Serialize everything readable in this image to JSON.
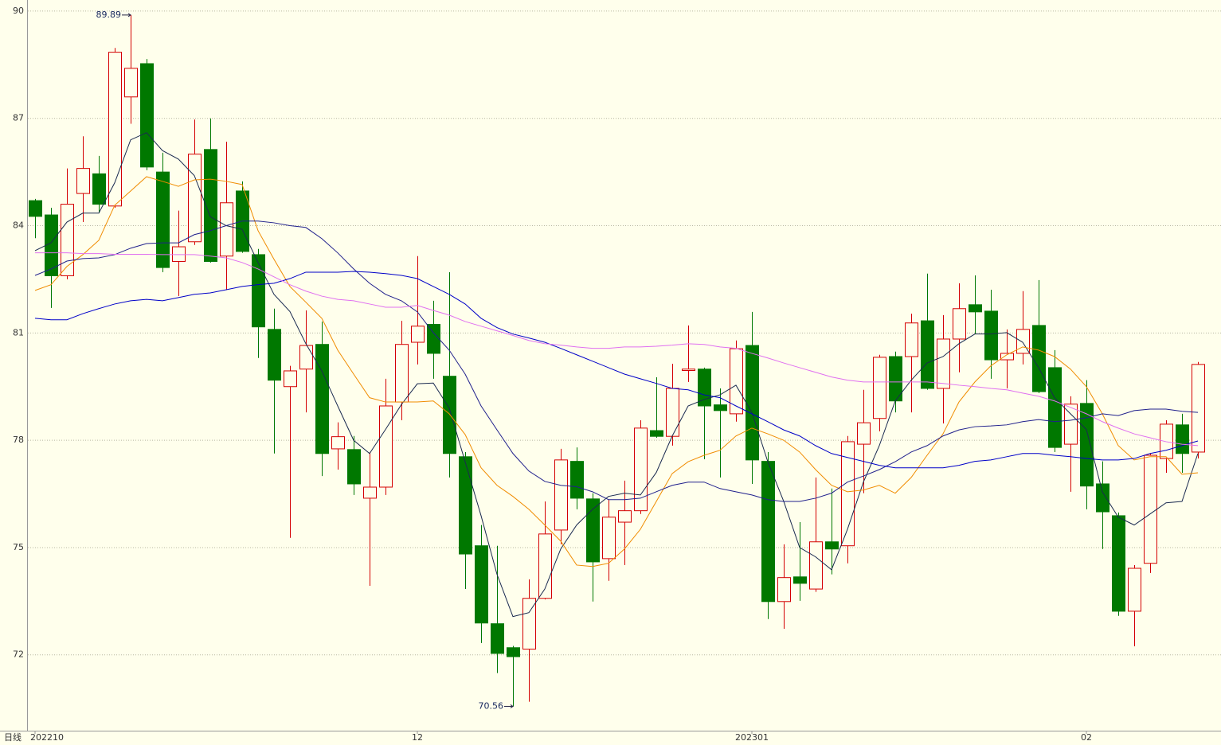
{
  "chart_data": {
    "type": "candlestick",
    "period_label": "日线",
    "categories": [
      "202210",
      null,
      null,
      null,
      null,
      null,
      null,
      null,
      null,
      null,
      null,
      null,
      null,
      null,
      null,
      null,
      null,
      null,
      null,
      null,
      null,
      null,
      null,
      null,
      "12",
      null,
      null,
      null,
      null,
      null,
      null,
      null,
      null,
      null,
      null,
      null,
      null,
      null,
      null,
      null,
      null,
      null,
      null,
      null,
      null,
      "202301",
      null,
      null,
      null,
      null,
      null,
      null,
      null,
      null,
      null,
      null,
      null,
      null,
      null,
      null,
      null,
      null,
      null,
      null,
      null,
      null,
      "02",
      null,
      null,
      null,
      null,
      null,
      null,
      null
    ],
    "open": [
      84.7,
      84.3,
      82.6,
      84.9,
      85.45,
      84.55,
      87.6,
      88.53,
      85.5,
      83.0,
      83.55,
      86.13,
      83.15,
      84.97,
      83.19,
      81.1,
      79.5,
      79.99,
      80.68,
      77.76,
      77.74,
      76.38,
      76.69,
      79.07,
      80.74,
      81.24,
      79.79,
      77.54,
      75.05,
      72.87,
      72.2,
      72.16,
      73.58,
      75.49,
      77.41,
      76.36,
      74.69,
      75.71,
      76.03,
      78.27,
      78.11,
      79.95,
      79.99,
      78.99,
      78.74,
      80.65,
      77.41,
      73.49,
      74.18,
      73.84,
      75.16,
      75.05,
      77.89,
      78.61,
      80.34,
      80.34,
      81.34,
      79.45,
      80.83,
      81.79,
      81.61,
      80.25,
      80.43,
      81.21,
      80.03,
      77.89,
      79.03,
      76.78,
      75.89,
      73.22,
      74.56,
      77.49,
      78.43,
      77.67
    ],
    "high": [
      84.75,
      84.5,
      85.6,
      86.5,
      85.95,
      88.97,
      89.89,
      88.66,
      86.04,
      84.42,
      86.97,
      87.0,
      86.35,
      85.24,
      83.35,
      81.68,
      80.08,
      81.63,
      81.32,
      78.5,
      78.12,
      77.67,
      79.72,
      81.34,
      83.15,
      81.9,
      82.7,
      77.67,
      75.63,
      75.05,
      72.25,
      74.11,
      76.29,
      77.76,
      77.8,
      76.52,
      76.34,
      76.87,
      78.56,
      79.76,
      80.14,
      81.21,
      80.03,
      79.45,
      80.79,
      81.59,
      77.67,
      75.09,
      75.71,
      76.96,
      76.65,
      78.12,
      79.41,
      80.39,
      80.48,
      81.54,
      82.66,
      81.5,
      82.39,
      82.61,
      82.21,
      81.1,
      82.17,
      82.48,
      80.52,
      79.23,
      79.68,
      77.41,
      75.98,
      74.51,
      77.63,
      78.56,
      78.74,
      80.19
    ],
    "low": [
      83.65,
      81.7,
      82.5,
      84.1,
      84.35,
      84.5,
      86.85,
      85.55,
      82.7,
      82.03,
      83.46,
      82.97,
      82.2,
      83.24,
      80.3,
      77.63,
      75.27,
      78.78,
      77.0,
      77.18,
      76.47,
      73.93,
      76.47,
      78.56,
      80.12,
      79.72,
      76.96,
      73.84,
      72.33,
      71.49,
      70.56,
      70.69,
      73.55,
      75.09,
      76.07,
      73.49,
      74.07,
      74.51,
      75.94,
      78.07,
      77.85,
      79.63,
      77.47,
      76.96,
      78.52,
      76.78,
      73.0,
      72.73,
      73.51,
      73.76,
      74.25,
      74.56,
      76.52,
      78.25,
      78.78,
      78.78,
      79.41,
      78.47,
      79.9,
      80.97,
      79.72,
      79.45,
      80.12,
      79.32,
      77.67,
      76.56,
      76.07,
      74.96,
      73.09,
      72.24,
      74.29,
      77.09,
      77.09,
      77.49
    ],
    "close": [
      84.26,
      82.6,
      84.6,
      85.6,
      84.6,
      88.85,
      88.4,
      85.64,
      82.83,
      83.41,
      86.0,
      83.0,
      84.64,
      83.28,
      81.17,
      79.68,
      79.94,
      80.65,
      77.63,
      78.1,
      76.78,
      76.69,
      78.96,
      80.68,
      81.19,
      80.43,
      77.63,
      74.82,
      72.89,
      72.04,
      71.95,
      73.58,
      75.38,
      77.45,
      76.38,
      74.6,
      75.85,
      76.03,
      78.34,
      78.11,
      79.45,
      79.99,
      78.96,
      78.83,
      80.56,
      77.45,
      73.49,
      74.16,
      74.0,
      75.16,
      74.96,
      77.96,
      78.49,
      80.32,
      79.1,
      81.28,
      79.45,
      80.83,
      81.68,
      81.59,
      80.25,
      80.43,
      81.1,
      79.36,
      77.8,
      79.01,
      76.72,
      76.0,
      73.22,
      74.42,
      77.58,
      78.45,
      77.63,
      80.12
    ],
    "up_color": "#d40000",
    "down_color": "#007800",
    "series": [
      {
        "color": "#1a2a50",
        "values": [
          83.3,
          83.52,
          84.1,
          84.35,
          84.35,
          85.2,
          86.4,
          86.6,
          86.1,
          85.86,
          85.4,
          84.25,
          84.0,
          83.9,
          82.97,
          82.08,
          81.6,
          80.7,
          79.94,
          78.96,
          78.0,
          77.63,
          78.3,
          79.0,
          79.58,
          79.6,
          78.9,
          77.4,
          75.89,
          74.25,
          73.07,
          73.18,
          73.84,
          74.96,
          75.63,
          76.07,
          76.43,
          76.52,
          76.47,
          77.1,
          78.12,
          78.96,
          79.14,
          79.27,
          79.54,
          78.78,
          77.4,
          76.29,
          75.0,
          74.74,
          74.38,
          75.51,
          76.83,
          77.85,
          79.1,
          79.68,
          80.16,
          80.34,
          80.7,
          80.97,
          80.97,
          81.01,
          80.74,
          80.03,
          79.19,
          78.74,
          78.3,
          76.56,
          75.85,
          75.63,
          75.94,
          76.25,
          76.29,
          77.63
        ]
      },
      {
        "color": "#f08c00",
        "values": [
          82.19,
          82.35,
          82.86,
          83.19,
          83.59,
          84.57,
          84.97,
          85.37,
          85.24,
          85.1,
          85.28,
          85.3,
          85.24,
          85.15,
          83.86,
          83.06,
          82.3,
          81.86,
          81.41,
          80.52,
          79.85,
          79.19,
          79.07,
          79.07,
          79.07,
          79.1,
          78.74,
          78.16,
          77.23,
          76.74,
          76.43,
          76.07,
          75.63,
          75.18,
          74.51,
          74.47,
          74.56,
          74.96,
          75.51,
          76.29,
          77.07,
          77.4,
          77.58,
          77.72,
          78.12,
          78.34,
          78.18,
          78.0,
          77.67,
          77.18,
          76.74,
          76.56,
          76.61,
          76.74,
          76.52,
          76.96,
          77.58,
          78.18,
          79.07,
          79.63,
          80.08,
          80.39,
          80.61,
          80.52,
          80.34,
          79.99,
          79.5,
          78.74,
          77.85,
          77.45,
          77.54,
          77.54,
          77.05,
          77.09
        ]
      },
      {
        "color": "#20208c",
        "values": [
          82.61,
          82.79,
          83.01,
          83.08,
          83.1,
          83.19,
          83.37,
          83.5,
          83.52,
          83.52,
          83.75,
          83.86,
          84.0,
          84.13,
          84.13,
          84.08,
          84.0,
          83.95,
          83.64,
          83.24,
          82.79,
          82.39,
          82.08,
          81.9,
          81.59,
          81.01,
          80.52,
          79.85,
          78.96,
          78.29,
          77.63,
          77.14,
          76.85,
          76.74,
          76.7,
          76.56,
          76.34,
          76.34,
          76.38,
          76.56,
          76.74,
          76.83,
          76.83,
          76.65,
          76.56,
          76.47,
          76.34,
          76.29,
          76.29,
          76.38,
          76.52,
          76.83,
          77.0,
          77.18,
          77.4,
          77.67,
          77.85,
          78.12,
          78.29,
          78.38,
          78.4,
          78.43,
          78.52,
          78.58,
          78.52,
          78.56,
          78.63,
          78.74,
          78.69,
          78.83,
          78.87,
          78.87,
          78.81,
          78.78
        ]
      },
      {
        "color": "#0000c8",
        "values": [
          81.41,
          81.37,
          81.37,
          81.54,
          81.68,
          81.81,
          81.9,
          81.94,
          81.9,
          81.99,
          82.08,
          82.12,
          82.21,
          82.3,
          82.35,
          82.39,
          82.52,
          82.7,
          82.7,
          82.7,
          82.72,
          82.7,
          82.66,
          82.61,
          82.52,
          82.3,
          82.08,
          81.81,
          81.41,
          81.15,
          80.97,
          80.86,
          80.74,
          80.57,
          80.39,
          80.21,
          80.03,
          79.85,
          79.72,
          79.59,
          79.45,
          79.41,
          79.27,
          79.19,
          78.96,
          78.74,
          78.52,
          78.29,
          78.12,
          77.85,
          77.63,
          77.52,
          77.41,
          77.3,
          77.23,
          77.23,
          77.23,
          77.23,
          77.3,
          77.41,
          77.45,
          77.54,
          77.63,
          77.63,
          77.58,
          77.54,
          77.49,
          77.45,
          77.45,
          77.49,
          77.63,
          77.72,
          77.85,
          77.98
        ]
      },
      {
        "color": "#e070f0",
        "values": [
          83.24,
          83.24,
          83.24,
          83.22,
          83.22,
          83.2,
          83.2,
          83.2,
          83.19,
          83.19,
          83.19,
          83.15,
          83.1,
          82.97,
          82.79,
          82.57,
          82.35,
          82.17,
          82.03,
          81.94,
          81.9,
          81.81,
          81.72,
          81.72,
          81.77,
          81.63,
          81.5,
          81.32,
          81.19,
          81.06,
          80.93,
          80.79,
          80.7,
          80.66,
          80.61,
          80.57,
          80.57,
          80.61,
          80.61,
          80.63,
          80.66,
          80.7,
          80.68,
          80.61,
          80.57,
          80.43,
          80.3,
          80.16,
          80.03,
          79.9,
          79.77,
          79.68,
          79.63,
          79.63,
          79.63,
          79.63,
          79.63,
          79.59,
          79.54,
          79.5,
          79.45,
          79.41,
          79.32,
          79.23,
          79.1,
          78.92,
          78.74,
          78.52,
          78.34,
          78.18,
          78.07,
          77.96,
          77.89,
          77.85
        ]
      }
    ],
    "ylim": [
      69.88,
      90.31
    ],
    "yticks": [
      72,
      75,
      78,
      81,
      84,
      87,
      90
    ],
    "grid": true
  }
}
